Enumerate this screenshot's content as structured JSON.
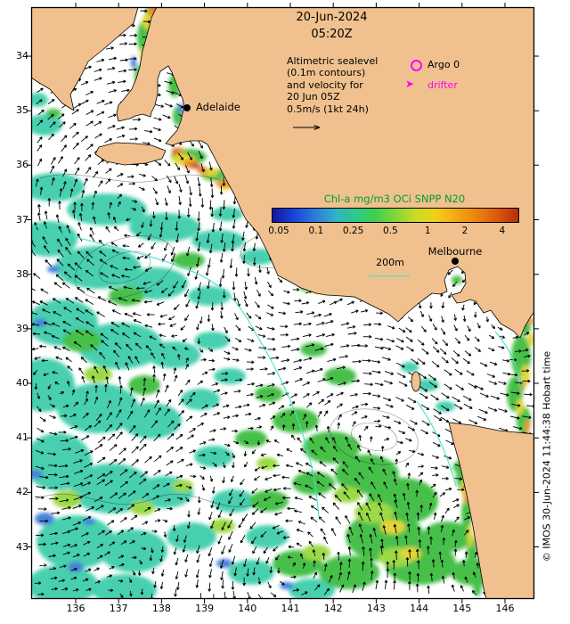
{
  "map": {
    "title": {
      "date": "20-Jun-2024",
      "time": "05:20Z"
    },
    "annotation": {
      "lines": [
        "Altimetric sealevel",
        "(0.1m contours)",
        "and velocity for",
        "20 Jun 05Z",
        "0.5m/s (1kt 24h)"
      ]
    },
    "legend": {
      "argo": "Argo 0",
      "drifter": "drifter"
    },
    "colorbar": {
      "title": "Chl-a mg/m3 OCi SNPP N20",
      "ticks": [
        "0.05",
        "0.1",
        "0.25",
        "0.5",
        "1",
        "2",
        "4"
      ]
    },
    "isobath_label": "200m",
    "cities": [
      {
        "name": "Adelaide"
      },
      {
        "name": "Melbourne"
      }
    ],
    "axes": {
      "lat": [
        "34",
        "35",
        "36",
        "37",
        "38",
        "39",
        "40",
        "41",
        "42",
        "43"
      ],
      "lon": [
        "136",
        "137",
        "138",
        "139",
        "140",
        "141",
        "142",
        "143",
        "144",
        "145",
        "146"
      ]
    },
    "credit": "© IMOS 30-Jun-2024 11:44:38 Hobart time",
    "colors": {
      "land": "#f0c18e",
      "ocean": "#ffffff",
      "magenta": "#ff00ff",
      "colorbar_title": "#009e2f",
      "isobath": "#3ce3cb",
      "arrow": "#000000"
    }
  }
}
